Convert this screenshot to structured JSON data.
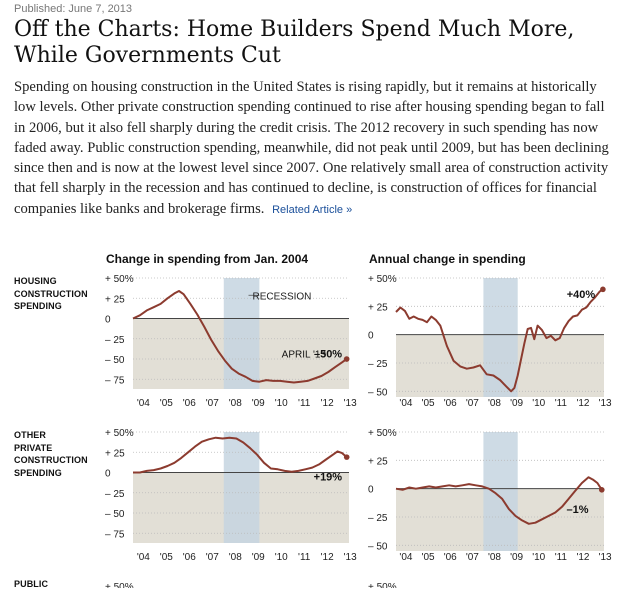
{
  "published": "Published: June 7, 2013",
  "headline": "Off the Charts: Home Builders Spend Much More, While Governments Cut",
  "intro": "Spending on housing construction in the United States is rising rapidly, but it remains at historically low levels. Other private construction spending continued to rise after housing spending began to fall in 2006, but it also fell sharply during the credit crisis. The 2012 recovery in such spending has now faded away. Public construction spending, meanwhile, did not peak until 2009, but has been declining since then and is now at the lowest level since 2007. One relatively small area of construction activity that fell sharply in the recession and has continued to decline, is construction of offices for financial companies like banks and brokerage firms.",
  "related_link": "Related Article »",
  "column_titles": [
    "Change in spending from Jan. 2004",
    "Annual change in spending"
  ],
  "row_labels": {
    "housing": "HOUSING\nCONSTRUCTION\nSPENDING",
    "other": "OTHER\nPRIVATE\nCONSTRUCTION\nSPENDING",
    "public": "PUBLIC"
  },
  "colors": {
    "line": "#8c3b2f",
    "negative_fill": "#e2dfd6",
    "recession": "#c5d5e0",
    "zero_line": "#444444",
    "grid": "#bbbbbb"
  },
  "chart_data": [
    {
      "type": "line",
      "row": "Housing construction spending",
      "title": "Change in spending from Jan. 2004",
      "x_tick_labels": [
        "'04",
        "'05",
        "'06",
        "'07",
        "'08",
        "'09",
        "'10",
        "'11",
        "'12",
        "'13"
      ],
      "y_tick_labels": [
        "+ 50%",
        "+ 25",
        "0",
        "– 25",
        "– 50",
        "– 75"
      ],
      "ylim": [
        -87,
        50
      ],
      "x_range": [
        2004,
        2013.4
      ],
      "recession": [
        2007.95,
        2009.5
      ],
      "annotations": [
        {
          "text": "RECESSION",
          "x": 2009.2,
          "y": 25
        },
        {
          "text": "APRIL '13",
          "x": 2012.4,
          "y": -43,
          "bold": false
        },
        {
          "text": "–50%",
          "x": 2013.1,
          "y": -43,
          "bold": true
        }
      ],
      "x": [
        2004.0,
        2004.3,
        2004.6,
        2004.9,
        2005.2,
        2005.5,
        2005.8,
        2006.0,
        2006.2,
        2006.5,
        2006.8,
        2007.1,
        2007.4,
        2007.7,
        2008.0,
        2008.3,
        2008.6,
        2008.9,
        2009.2,
        2009.5,
        2009.8,
        2010.1,
        2010.4,
        2010.7,
        2011.0,
        2011.3,
        2011.6,
        2011.9,
        2012.2,
        2012.5,
        2012.8,
        2013.1,
        2013.3
      ],
      "y": [
        0,
        4,
        10,
        14,
        18,
        25,
        31,
        34,
        30,
        18,
        5,
        -10,
        -26,
        -40,
        -52,
        -62,
        -68,
        -72,
        -77,
        -78,
        -76,
        -77,
        -77,
        -78,
        -79,
        -78,
        -77,
        -74,
        -71,
        -66,
        -60,
        -54,
        -50
      ]
    },
    {
      "type": "line",
      "row": "Housing construction spending",
      "title": "Annual change in spending",
      "x_tick_labels": [
        "'04",
        "'05",
        "'06",
        "'07",
        "'08",
        "'09",
        "'10",
        "'11",
        "'12",
        "'13"
      ],
      "y_tick_labels": [
        "+ 50%",
        "+ 25",
        "0",
        "– 25",
        "– 50"
      ],
      "ylim": [
        -55,
        50
      ],
      "x_range": [
        2004,
        2013.4
      ],
      "recession": [
        2007.95,
        2009.5
      ],
      "annotations": [
        {
          "text": "+40%",
          "x": 2013.0,
          "y": 36,
          "bold": true
        }
      ],
      "x": [
        2004.0,
        2004.2,
        2004.4,
        2004.6,
        2004.8,
        2005.0,
        2005.2,
        2005.4,
        2005.6,
        2005.8,
        2006.0,
        2006.3,
        2006.6,
        2006.9,
        2007.2,
        2007.5,
        2007.8,
        2008.1,
        2008.4,
        2008.7,
        2009.0,
        2009.2,
        2009.35,
        2009.5,
        2009.65,
        2009.8,
        2009.95,
        2010.1,
        2010.25,
        2010.4,
        2010.6,
        2010.8,
        2011.0,
        2011.2,
        2011.4,
        2011.6,
        2011.8,
        2012.0,
        2012.2,
        2012.4,
        2012.6,
        2012.8,
        2013.0,
        2013.2,
        2013.35
      ],
      "y": [
        20,
        24,
        21,
        14,
        16,
        14,
        13,
        11,
        16,
        13,
        8,
        -10,
        -23,
        -28,
        -30,
        -29,
        -27,
        -35,
        -36,
        -40,
        -46,
        -50,
        -47,
        -36,
        -22,
        -8,
        5,
        6,
        -4,
        8,
        4,
        -3,
        -1,
        -5,
        -3,
        6,
        12,
        16,
        17,
        22,
        24,
        29,
        33,
        38,
        40
      ]
    },
    {
      "type": "line",
      "row": "Other private construction spending",
      "title": "Change in spending from Jan. 2004",
      "x_tick_labels": [
        "'04",
        "'05",
        "'06",
        "'07",
        "'08",
        "'09",
        "'10",
        "'11",
        "'12",
        "'13"
      ],
      "y_tick_labels": [
        "+ 50%",
        "+ 25",
        "0",
        "– 25",
        "– 50",
        "– 75"
      ],
      "ylim": [
        -87,
        50
      ],
      "x_range": [
        2004,
        2013.4
      ],
      "recession": [
        2007.95,
        2009.5
      ],
      "annotations": [
        {
          "text": "+19%",
          "x": 2013.1,
          "y": -5,
          "bold": true
        }
      ],
      "x": [
        2004.0,
        2004.3,
        2004.6,
        2004.9,
        2005.2,
        2005.5,
        2005.8,
        2006.1,
        2006.4,
        2006.7,
        2007.0,
        2007.3,
        2007.6,
        2007.9,
        2008.2,
        2008.5,
        2008.8,
        2009.1,
        2009.4,
        2009.7,
        2010.0,
        2010.3,
        2010.6,
        2010.9,
        2011.2,
        2011.5,
        2011.8,
        2012.1,
        2012.4,
        2012.7,
        2012.9,
        2013.1,
        2013.3
      ],
      "y": [
        0,
        0,
        2,
        3,
        5,
        8,
        12,
        18,
        25,
        32,
        38,
        41,
        43,
        42,
        43,
        42,
        37,
        30,
        22,
        12,
        5,
        4,
        2,
        1,
        2,
        4,
        6,
        10,
        16,
        22,
        26,
        24,
        19
      ]
    },
    {
      "type": "line",
      "row": "Other private construction spending",
      "title": "Annual change in spending",
      "x_tick_labels": [
        "'04",
        "'05",
        "'06",
        "'07",
        "'08",
        "'09",
        "'10",
        "'11",
        "'12",
        "'13"
      ],
      "y_tick_labels": [
        "+ 50%",
        "+ 25",
        "0",
        "– 25",
        "– 50"
      ],
      "ylim": [
        -55,
        50
      ],
      "x_range": [
        2004,
        2013.4
      ],
      "recession": [
        2007.95,
        2009.5
      ],
      "annotations": [
        {
          "text": "–1%",
          "x": 2012.7,
          "y": -18,
          "bold": true
        }
      ],
      "x": [
        2004.0,
        2004.3,
        2004.6,
        2004.9,
        2005.2,
        2005.5,
        2005.8,
        2006.1,
        2006.4,
        2006.7,
        2007.0,
        2007.3,
        2007.6,
        2007.9,
        2008.2,
        2008.5,
        2008.8,
        2009.1,
        2009.4,
        2009.7,
        2010.0,
        2010.3,
        2010.6,
        2010.9,
        2011.2,
        2011.5,
        2011.8,
        2012.1,
        2012.4,
        2012.7,
        2012.9,
        2013.1,
        2013.3
      ],
      "y": [
        0,
        -1,
        1,
        0,
        1,
        2,
        1,
        2,
        3,
        2,
        3,
        4,
        3,
        2,
        0,
        -4,
        -9,
        -18,
        -24,
        -28,
        -31,
        -30,
        -27,
        -24,
        -21,
        -16,
        -9,
        -2,
        5,
        10,
        8,
        5,
        -1
      ]
    }
  ],
  "partial_row_ticks": [
    "+ 50%",
    "+ 50%"
  ]
}
